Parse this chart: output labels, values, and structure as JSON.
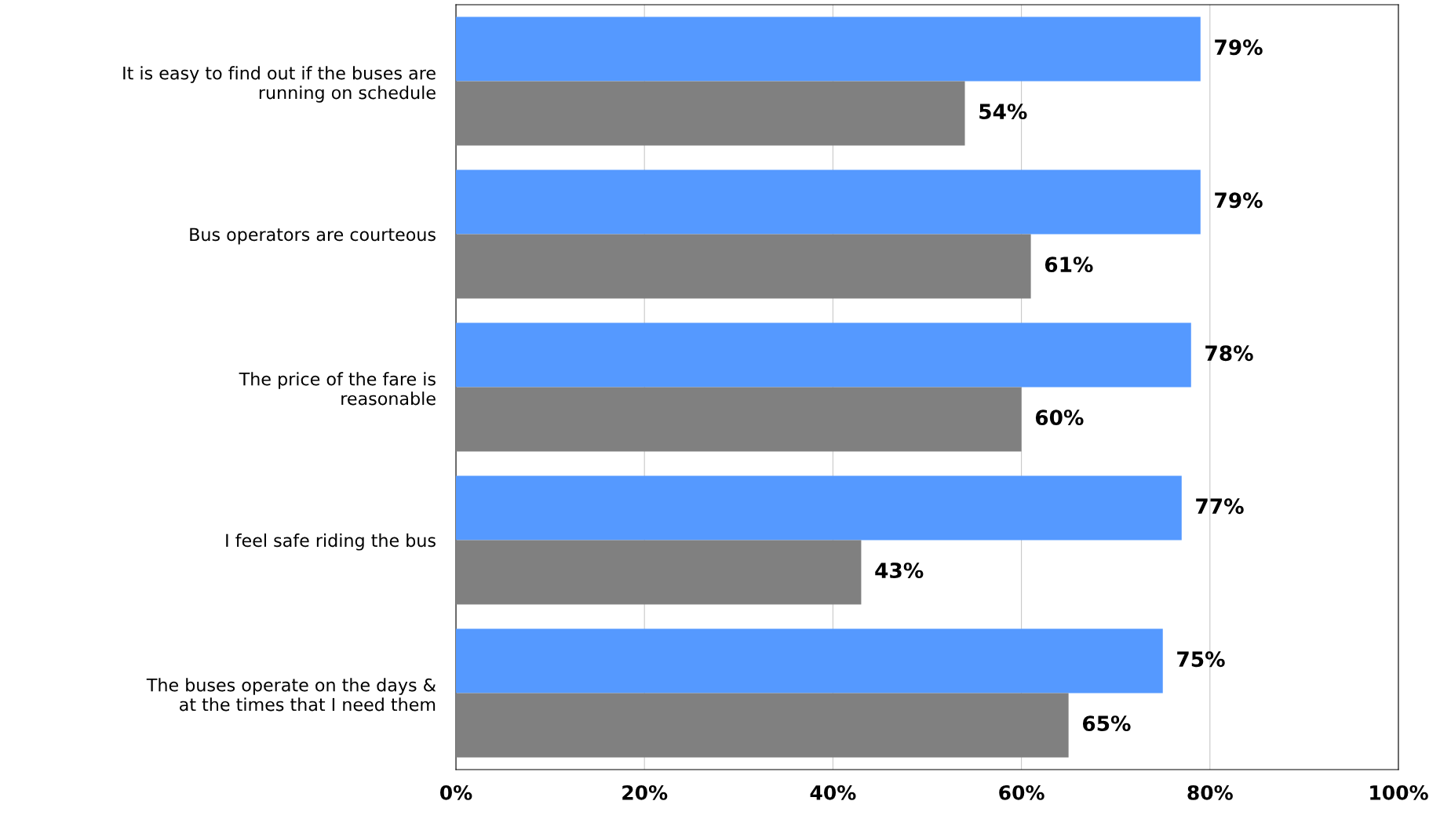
{
  "chart_data": {
    "type": "bar",
    "orientation": "horizontal",
    "categories": [
      "It is easy to find out if the buses are\nrunning on schedule",
      "Bus operators are courteous",
      "The price of the fare is\nreasonable",
      "I feel safe riding the bus",
      "The buses operate on the days &\nat the times that I need them"
    ],
    "series": [
      {
        "color": "#5599ff",
        "values": [
          79,
          79,
          78,
          77,
          75
        ],
        "value_labels": [
          "79%",
          "79%",
          "78%",
          "77%",
          "75%"
        ]
      },
      {
        "color": "#808080",
        "values": [
          54,
          61,
          60,
          43,
          65
        ],
        "value_labels": [
          "54%",
          "61%",
          "60%",
          "43%",
          "65%"
        ]
      }
    ],
    "xlim": [
      0,
      100
    ],
    "xticks": [
      {
        "value": 0,
        "label": "0%"
      },
      {
        "value": 20,
        "label": "20%"
      },
      {
        "value": 40,
        "label": "40%"
      },
      {
        "value": 60,
        "label": "60%"
      },
      {
        "value": 80,
        "label": "80%"
      },
      {
        "value": 100,
        "label": "100%"
      }
    ],
    "grid": "x",
    "legend": false
  }
}
